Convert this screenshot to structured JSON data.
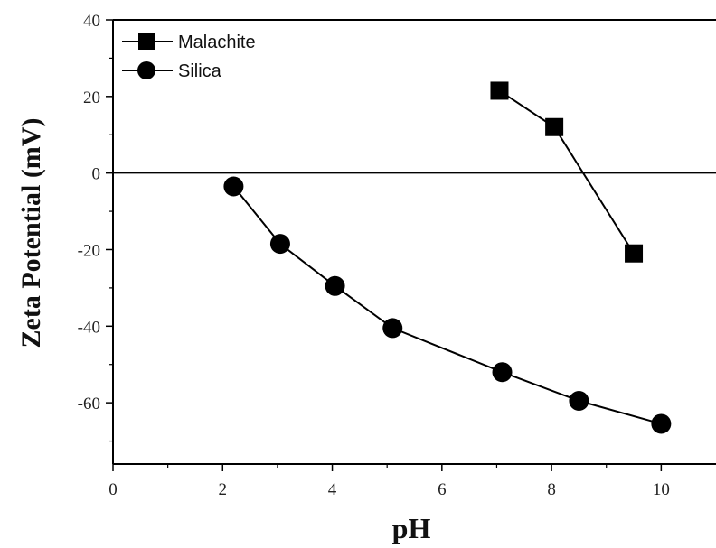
{
  "chart_data": {
    "type": "line",
    "xlabel": "pH",
    "ylabel": "Zeta Potential (mV)",
    "xlim": [
      0,
      11
    ],
    "ylim": [
      -76,
      40
    ],
    "xticks": [
      0,
      2,
      4,
      6,
      8,
      10
    ],
    "yticks": [
      40,
      20,
      0,
      -20,
      -40,
      -60
    ],
    "x_tick_labels": [
      "0",
      "2",
      "4",
      "6",
      "8",
      "10"
    ],
    "y_tick_labels": [
      "40",
      "20",
      "0",
      "-20",
      "-40",
      "-60"
    ],
    "reference_line_y": 0,
    "legend_position": "top-left",
    "series": [
      {
        "name": "Malachite",
        "marker": "square",
        "color": "#000000",
        "x": [
          7.05,
          8.05,
          9.5
        ],
        "y": [
          21.5,
          12,
          -21
        ]
      },
      {
        "name": "Silica",
        "marker": "circle",
        "color": "#000000",
        "x": [
          2.2,
          3.05,
          4.05,
          5.1,
          7.1,
          8.5,
          10.0
        ],
        "y": [
          -3.5,
          -18.5,
          -29.5,
          -40.5,
          -52,
          -59.5,
          -65.5
        ]
      }
    ]
  }
}
